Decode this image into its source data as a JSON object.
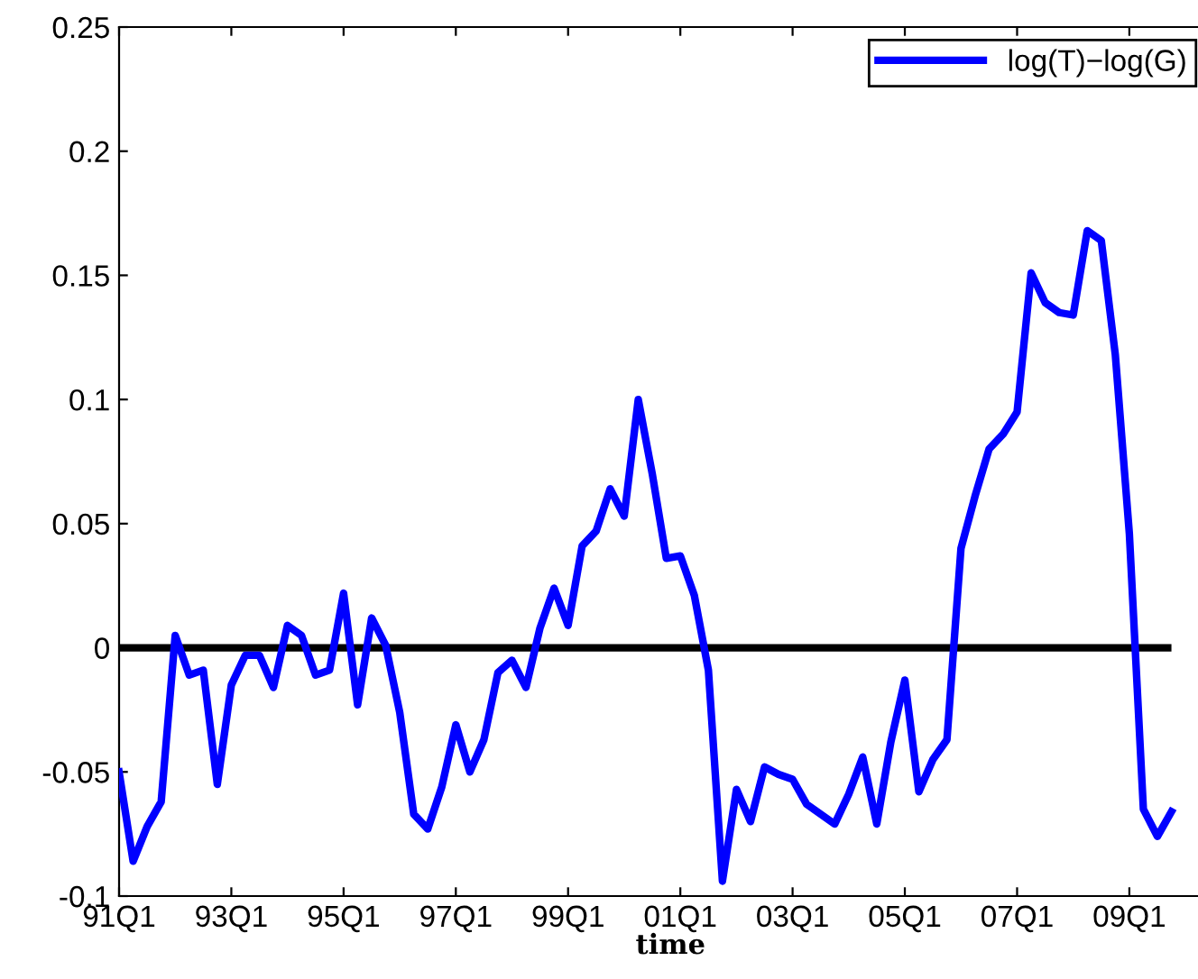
{
  "chart_data": {
    "type": "line",
    "xlabel": "time",
    "categories": [
      "91Q1",
      null,
      null,
      null,
      null,
      null,
      null,
      null,
      "93Q1",
      null,
      null,
      null,
      null,
      null,
      null,
      null,
      "95Q1",
      null,
      null,
      null,
      null,
      null,
      null,
      null,
      "97Q1",
      null,
      null,
      null,
      null,
      null,
      null,
      null,
      "99Q1",
      null,
      null,
      null,
      null,
      null,
      null,
      null,
      "01Q1",
      null,
      null,
      null,
      null,
      null,
      null,
      null,
      "03Q1",
      null,
      null,
      null,
      null,
      null,
      null,
      null,
      "05Q1",
      null,
      null,
      null,
      null,
      null,
      null,
      null,
      "07Q1",
      null,
      null,
      null,
      null,
      null,
      null,
      null,
      "09Q1",
      null,
      null,
      null
    ],
    "series": [
      {
        "name": "log(T)−log(G)",
        "color": "#0000ff",
        "values": [
          -0.05,
          -0.086,
          -0.072,
          -0.062,
          0.005,
          -0.011,
          -0.009,
          -0.055,
          -0.015,
          -0.003,
          -0.003,
          -0.016,
          0.009,
          0.005,
          -0.011,
          -0.009,
          0.022,
          -0.023,
          0.012,
          0.001,
          -0.026,
          -0.067,
          -0.073,
          -0.056,
          -0.031,
          -0.05,
          -0.037,
          -0.01,
          -0.005,
          -0.016,
          0.008,
          0.024,
          0.009,
          0.041,
          0.047,
          0.064,
          0.053,
          0.1,
          0.07,
          0.036,
          0.037,
          0.021,
          -0.009,
          -0.094,
          -0.057,
          -0.07,
          -0.048,
          -0.051,
          -0.053,
          -0.063,
          -0.067,
          -0.071,
          -0.059,
          -0.044,
          -0.071,
          -0.038,
          -0.013,
          -0.058,
          -0.045,
          -0.037,
          0.04,
          0.061,
          0.08,
          0.086,
          0.095,
          0.151,
          0.139,
          0.135,
          0.134,
          0.168,
          0.164,
          0.118,
          0.046,
          -0.065,
          -0.076,
          -0.066
        ]
      }
    ],
    "ylim": [
      -0.1,
      0.25
    ],
    "yticks": [
      -0.1,
      -0.05,
      0,
      0.05,
      0.1,
      0.15,
      0.2,
      0.25
    ],
    "ref_lines": [
      {
        "axis": "y",
        "value": 0,
        "color": "#000000",
        "line_style": "solid"
      }
    ],
    "grid": false,
    "legend": "top right",
    "marker": "none",
    "line_style": "solid"
  }
}
